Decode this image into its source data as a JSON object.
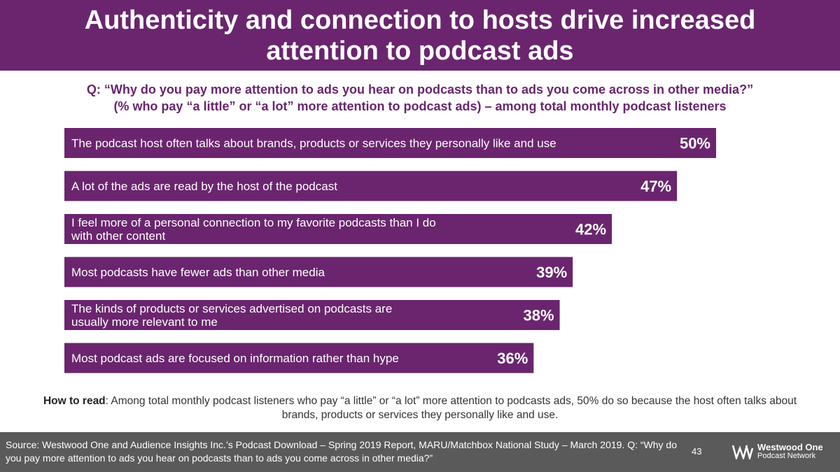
{
  "title": "Authenticity and connection to hosts drive increased attention to podcast ads",
  "question": {
    "line1": "Q: “Why do you pay more attention to ads you hear on podcasts than to ads you come across in other media?”",
    "line2": "(% who pay “a little” or “a lot” more attention to podcast ads) – among total monthly podcast listeners"
  },
  "chart_data": {
    "type": "bar",
    "orientation": "horizontal",
    "categories": [
      [
        "The podcast host often talks about brands, products or services they personally like and use"
      ],
      [
        "A lot of the ads are read by the host of the podcast"
      ],
      [
        "I feel more of a personal connection to my favorite podcasts than I do",
        "with other content"
      ],
      [
        "Most podcasts have fewer ads than other media"
      ],
      [
        "The kinds of products or services advertised on podcasts are",
        "usually more relevant to me"
      ],
      [
        "Most podcast ads are focused on information rather than hype"
      ]
    ],
    "values": [
      50,
      47,
      42,
      39,
      38,
      36
    ],
    "value_suffix": "%",
    "xlim": [
      0,
      50
    ],
    "bar_color": "#6a256e",
    "grid": false,
    "legend": "none"
  },
  "how_to_read": {
    "label": "How to read",
    "text": ": Among total monthly podcast listeners who pay “a little” or “a lot” more attention to podcasts ads, 50% do so because the host often talks about brands, products or services they personally like and use."
  },
  "footer": {
    "source": "Source: Westwood One and Audience Insights Inc.’s Podcast Download – Spring 2019 Report, MARU/Matchbox National Study – March 2019. Q: “Why do you pay more attention to ads you hear on podcasts than to ads you come across in other media?”",
    "page_number": "43",
    "logo_title": "Westwood One",
    "logo_subtitle": "Podcast Network"
  }
}
